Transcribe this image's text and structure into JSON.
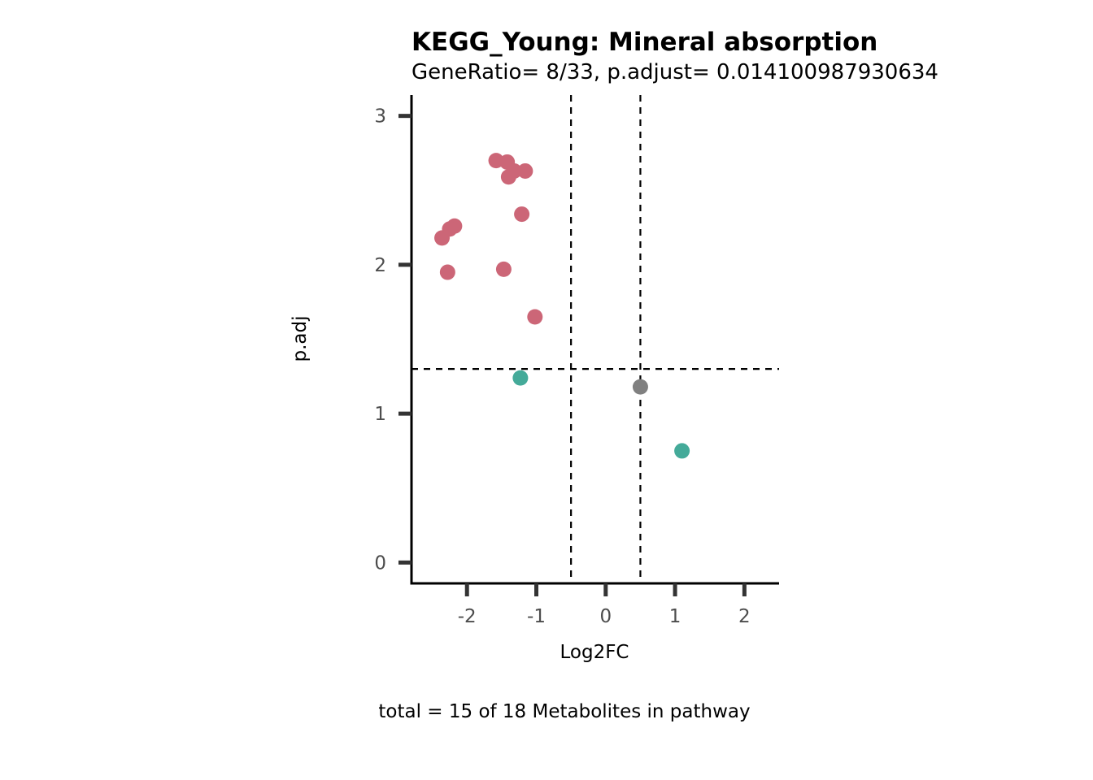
{
  "chart_data": {
    "type": "scatter",
    "title": "KEGG_Young: Mineral absorption",
    "subtitle": "GeneRatio= 8/33, p.adjust= 0.014100987930634",
    "xlabel": "Log2FC",
    "ylabel": "p.adj",
    "caption": "total = 15 of 18 Metabolites in pathway",
    "xlim": [
      -2.8,
      2.5
    ],
    "ylim": [
      -0.14,
      3.14
    ],
    "xticks": [
      -2,
      -1,
      0,
      1,
      2
    ],
    "xtick_labels": [
      "-2",
      "-1",
      "0",
      "1",
      "2"
    ],
    "yticks": [
      0,
      1,
      2,
      3
    ],
    "ytick_labels": [
      "0",
      "1",
      "2",
      "3"
    ],
    "vlines": [
      -0.5,
      0.5
    ],
    "hline": 1.3,
    "grid": false,
    "legend": "none",
    "colors": {
      "red": "#cc6677",
      "teal": "#44aa99",
      "grey": "#808080"
    },
    "points": [
      {
        "x": -1.58,
        "y": 2.7,
        "color": "red"
      },
      {
        "x": -1.42,
        "y": 2.69,
        "color": "red"
      },
      {
        "x": -1.32,
        "y": 2.63,
        "color": "red"
      },
      {
        "x": -1.16,
        "y": 2.63,
        "color": "red"
      },
      {
        "x": -1.4,
        "y": 2.59,
        "color": "red"
      },
      {
        "x": -1.21,
        "y": 2.34,
        "color": "red"
      },
      {
        "x": -2.18,
        "y": 2.26,
        "color": "red"
      },
      {
        "x": -2.25,
        "y": 2.24,
        "color": "red"
      },
      {
        "x": -2.36,
        "y": 2.18,
        "color": "red"
      },
      {
        "x": -1.47,
        "y": 1.97,
        "color": "red"
      },
      {
        "x": -2.28,
        "y": 1.95,
        "color": "red"
      },
      {
        "x": -1.02,
        "y": 1.65,
        "color": "red"
      },
      {
        "x": -1.23,
        "y": 1.24,
        "color": "teal"
      },
      {
        "x": 0.5,
        "y": 1.18,
        "color": "grey"
      },
      {
        "x": 1.1,
        "y": 0.75,
        "color": "teal"
      }
    ]
  }
}
